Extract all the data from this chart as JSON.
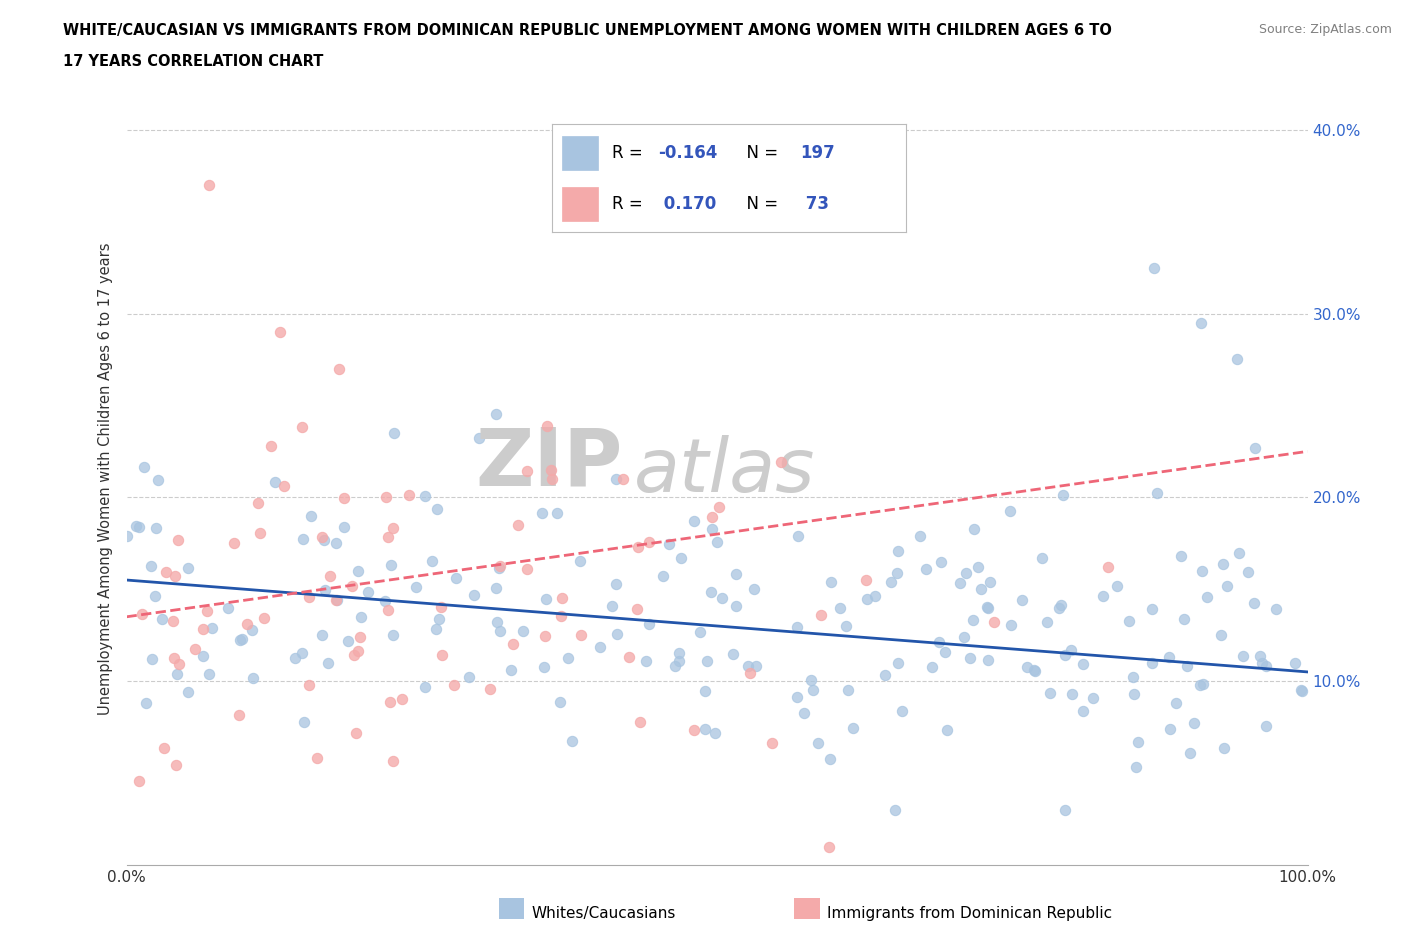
{
  "title_line1": "WHITE/CAUCASIAN VS IMMIGRANTS FROM DOMINICAN REPUBLIC UNEMPLOYMENT AMONG WOMEN WITH CHILDREN AGES 6 TO",
  "title_line2": "17 YEARS CORRELATION CHART",
  "source": "Source: ZipAtlas.com",
  "ylabel": "Unemployment Among Women with Children Ages 6 to 17 years",
  "xlim": [
    0,
    1.0
  ],
  "ylim": [
    0,
    0.42
  ],
  "blue_color": "#A8C4E0",
  "pink_color": "#F4AAAA",
  "blue_line_color": "#2255AA",
  "pink_line_color": "#EE6677",
  "watermark_zip": "ZIP",
  "watermark_atlas": "atlas",
  "watermark_color": "#DDDDDD",
  "R_blue": -0.164,
  "N_blue": 197,
  "R_pink": 0.17,
  "N_pink": 73,
  "background_color": "#FFFFFF",
  "grid_color": "#CCCCCC",
  "legend_text_color": "#3355BB",
  "blue_trend_start_y": 0.155,
  "blue_trend_end_y": 0.105,
  "pink_trend_start_y": 0.135,
  "pink_trend_end_y": 0.225
}
